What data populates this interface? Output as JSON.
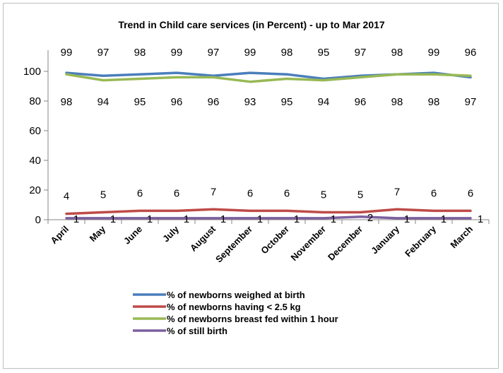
{
  "chart_data": {
    "type": "line",
    "title": "Trend in Child care services  (in Percent) -  up to Mar 2017",
    "xlabel": "",
    "ylabel": "",
    "ylim": [
      0,
      100
    ],
    "yticks": [
      "0",
      "20",
      "40",
      "60",
      "80",
      "100"
    ],
    "grid": false,
    "legend_position": "bottom",
    "categories": [
      "April",
      "May",
      "June",
      "July",
      "August",
      "September",
      "October",
      "November",
      "December",
      "January",
      "February",
      "March"
    ],
    "series": [
      {
        "name": "% of newborns weighed at birth",
        "color": "#4a7ebb",
        "values": [
          99,
          97,
          98,
          99,
          97,
          99,
          98,
          95,
          97,
          98,
          99,
          96
        ]
      },
      {
        "name": "% of newborns having < 2.5 kg",
        "color": "#be4b48",
        "values": [
          4,
          5,
          6,
          6,
          7,
          6,
          6,
          5,
          5,
          7,
          6,
          6
        ]
      },
      {
        "name": "% of newborns breast fed within 1 hour",
        "color": "#98b954",
        "values": [
          98,
          94,
          95,
          96,
          96,
          93,
          95,
          94,
          96,
          98,
          98,
          97
        ]
      },
      {
        "name": "% of still birth",
        "color": "#7d60a0",
        "values": [
          1,
          1,
          1,
          1,
          1,
          1,
          1,
          1,
          2,
          1,
          1,
          1
        ]
      }
    ]
  }
}
